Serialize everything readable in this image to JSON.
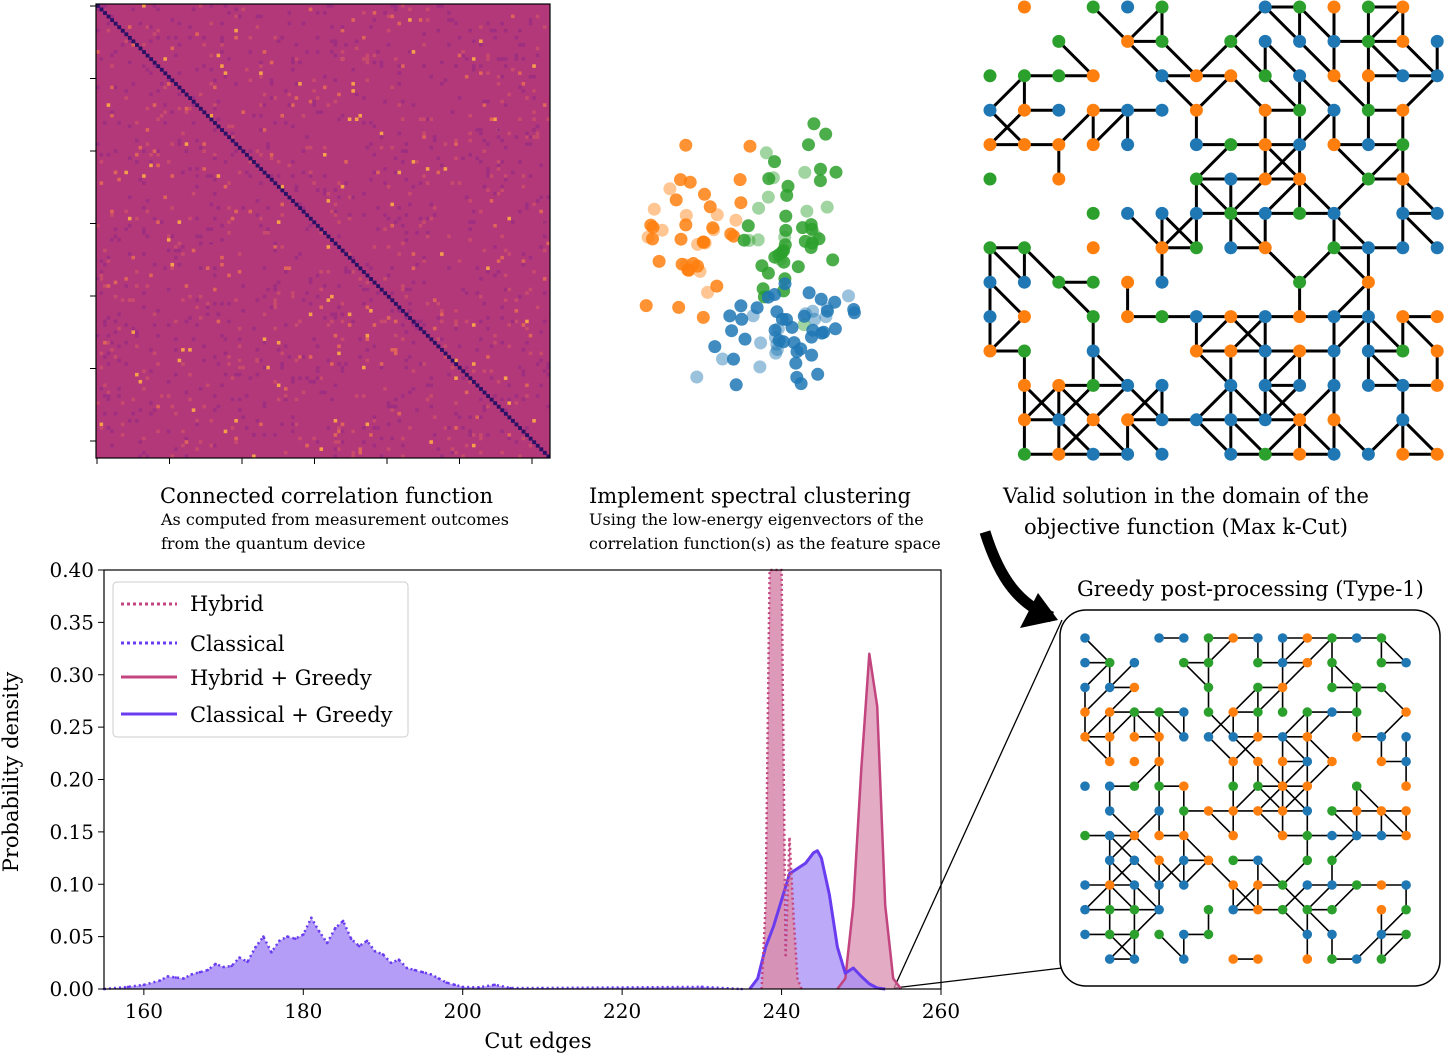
{
  "panels": {
    "correlation": {
      "title": "Connected correlation function",
      "subtitle_lines": [
        "As computed from measurement outcomes",
        "from the quantum device"
      ]
    },
    "clustering": {
      "title": "Implement spectral clustering",
      "subtitle_lines": [
        "Using the low-energy eigenvectors of the",
        "correlation function(s) as the feature space"
      ]
    },
    "solution": {
      "title_lines": [
        "Valid solution in the domain of the",
        "objective function (Max k-Cut)"
      ]
    },
    "greedy": {
      "title": "Greedy post-processing (Type-1)"
    }
  },
  "colors": {
    "heatmap_base": "#b2387a",
    "heatmap_diag": "#2a1066",
    "cluster_blue": "#1f77b4",
    "cluster_orange": "#ff7f0e",
    "cluster_green": "#2ca02c",
    "hybrid": "#c2457f",
    "classical": "#6a3cf0",
    "hybrid_fill": "#d98fb0",
    "classical_fill": "#a68cf5"
  },
  "chart_data": {
    "type": "area",
    "xlabel": "Cut edges",
    "ylabel": "Probability density",
    "xlim": [
      155,
      260
    ],
    "ylim": [
      0,
      0.4
    ],
    "xticks": [
      "160",
      "180",
      "200",
      "220",
      "240",
      "260"
    ],
    "yticks": [
      "0.00",
      "0.05",
      "0.10",
      "0.15",
      "0.20",
      "0.25",
      "0.30",
      "0.35",
      "0.40"
    ],
    "legend": {
      "placement": "upper-left",
      "entries": [
        "Hybrid",
        "Classical",
        "Hybrid + Greedy",
        "Classical + Greedy"
      ]
    },
    "series": [
      {
        "name": "Hybrid",
        "style": "dotted",
        "x": [
          237.5,
          238,
          238.5,
          239,
          239.5,
          240,
          240.5,
          241,
          241.5,
          242,
          242.5
        ],
        "y": [
          0,
          0.08,
          0.4,
          0.4,
          0.4,
          0.4,
          0.03,
          0.145,
          0.07,
          0.01,
          0
        ]
      },
      {
        "name": "Classical",
        "style": "dotted",
        "x": [
          155,
          158,
          160,
          162,
          163,
          164,
          165,
          166,
          167,
          168,
          169,
          170,
          171,
          172,
          173,
          174,
          175,
          176,
          177,
          178,
          179,
          180,
          181,
          182,
          183,
          184,
          185,
          186,
          187,
          188,
          189,
          190,
          191,
          192,
          193,
          194,
          195,
          196,
          197,
          198,
          199,
          200,
          202,
          204,
          206,
          210,
          230,
          235
        ],
        "y": [
          0.0,
          0.002,
          0.004,
          0.008,
          0.012,
          0.011,
          0.01,
          0.014,
          0.016,
          0.018,
          0.024,
          0.021,
          0.022,
          0.03,
          0.026,
          0.04,
          0.05,
          0.035,
          0.046,
          0.05,
          0.048,
          0.052,
          0.068,
          0.055,
          0.044,
          0.058,
          0.065,
          0.048,
          0.041,
          0.046,
          0.036,
          0.033,
          0.025,
          0.028,
          0.02,
          0.018,
          0.016,
          0.014,
          0.01,
          0.006,
          0.004,
          0.002,
          0.0015,
          0.004,
          0.001,
          0.001,
          0.002,
          0.0
        ]
      },
      {
        "name": "Hybrid + Greedy",
        "style": "solid",
        "x": [
          247,
          248,
          249,
          250,
          251,
          252,
          253,
          254,
          255
        ],
        "y": [
          0.0,
          0.01,
          0.08,
          0.21,
          0.32,
          0.27,
          0.08,
          0.01,
          0.0
        ]
      },
      {
        "name": "Classical + Greedy",
        "style": "solid",
        "x": [
          236,
          237,
          238,
          239,
          240,
          241,
          242,
          243,
          244,
          244.5,
          245,
          246,
          247,
          248,
          249,
          250,
          251,
          252,
          253
        ],
        "y": [
          0.0,
          0.01,
          0.04,
          0.06,
          0.085,
          0.11,
          0.115,
          0.12,
          0.13,
          0.132,
          0.125,
          0.09,
          0.04,
          0.015,
          0.02,
          0.012,
          0.005,
          0.001,
          0.0
        ]
      }
    ]
  }
}
